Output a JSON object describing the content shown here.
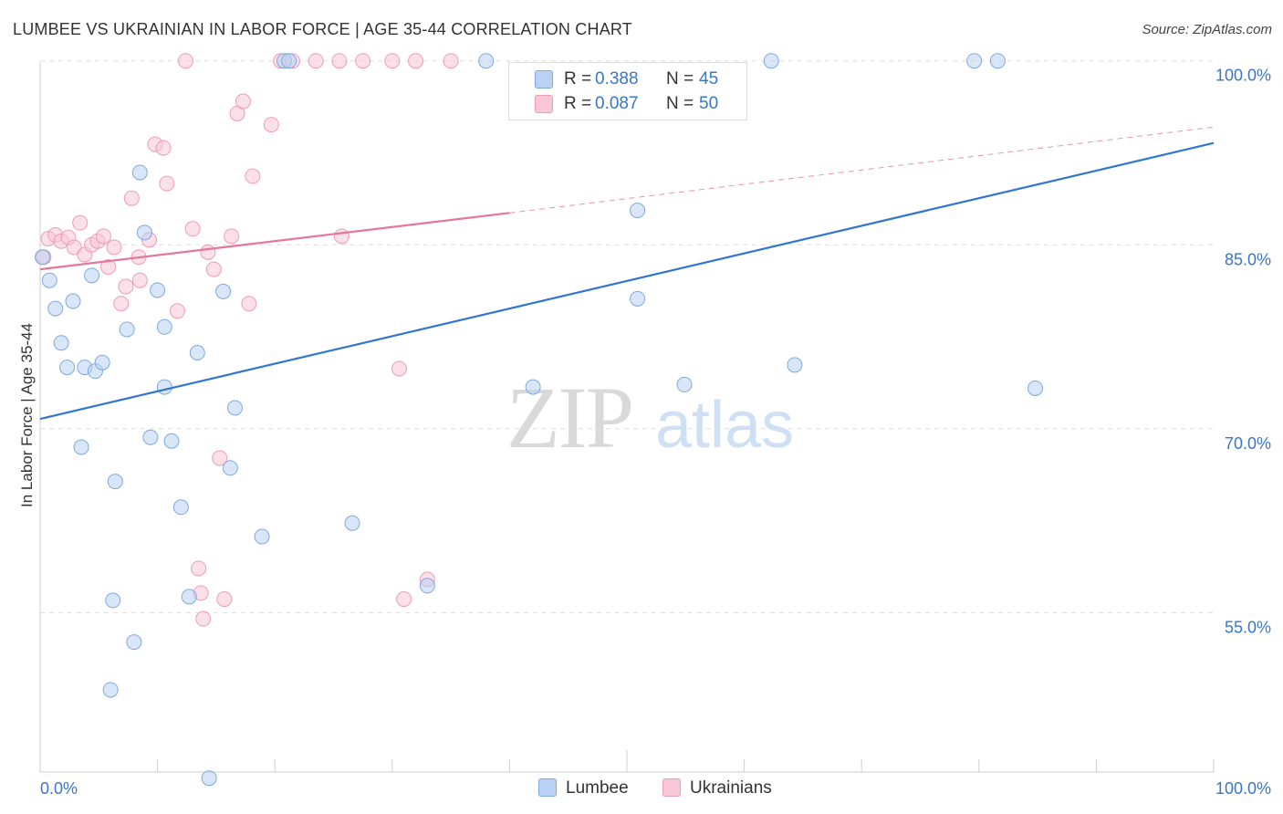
{
  "title": "LUMBEE VS UKRAINIAN IN LABOR FORCE | AGE 35-44 CORRELATION CHART",
  "source": "Source: ZipAtlas.com",
  "watermark": {
    "zip": "ZIP",
    "atlas": "atlas"
  },
  "colors": {
    "blue_fill": "#b9d1f2",
    "blue_stroke": "#7ea9e0",
    "blue_line": "#2f76d0",
    "pink_fill": "#f8c6d6",
    "pink_stroke": "#ee9cb7",
    "pink_line": "#e5779d",
    "axis_label": "#3a76c5",
    "grid": "#dddddd"
  },
  "legend_stats": [
    {
      "series": "Lumbee",
      "r_label": "R =",
      "r_value": "0.388",
      "n_label": "N =",
      "n_value": "45"
    },
    {
      "series": "Ukrainians",
      "r_label": "R =",
      "r_value": "0.087",
      "n_label": "N =",
      "n_value": "50"
    }
  ],
  "legend": [
    {
      "name": "Lumbee"
    },
    {
      "name": "Ukrainians"
    }
  ],
  "chart_data": {
    "type": "scatter",
    "title": "LUMBEE VS UKRAINIAN IN LABOR FORCE | AGE 35-44 CORRELATION CHART",
    "xlabel": "",
    "ylabel": "In Labor Force | Age 35-44",
    "xlim": [
      0,
      100
    ],
    "ylim": [
      42,
      100.5
    ],
    "x_tick_labels": [
      {
        "value": 0,
        "label": "0.0%"
      },
      {
        "value": 100,
        "label": "100.0%"
      }
    ],
    "y_tick_labels": [
      {
        "value": 55,
        "label": "55.0%"
      },
      {
        "value": 70,
        "label": "70.0%"
      },
      {
        "value": 85,
        "label": "85.0%"
      },
      {
        "value": 100,
        "label": "100.0%"
      }
    ],
    "y_gridlines": [
      55,
      70,
      85,
      100
    ],
    "series": [
      {
        "name": "Lumbee",
        "r": 0.388,
        "n": 45,
        "trend": {
          "x0": 0,
          "y0": 70.8,
          "x1": 100,
          "y1": 93.3
        },
        "points": [
          [
            0.2,
            84.0
          ],
          [
            0.8,
            82.1
          ],
          [
            1.3,
            79.8
          ],
          [
            1.8,
            77.0
          ],
          [
            2.3,
            75.0
          ],
          [
            2.8,
            80.4
          ],
          [
            3.5,
            68.5
          ],
          [
            3.8,
            75.0
          ],
          [
            4.4,
            82.5
          ],
          [
            4.7,
            74.7
          ],
          [
            5.3,
            75.4
          ],
          [
            6.4,
            65.7
          ],
          [
            6.2,
            56.0
          ],
          [
            6.0,
            48.7
          ],
          [
            7.4,
            78.1
          ],
          [
            8.0,
            52.6
          ],
          [
            8.5,
            90.9
          ],
          [
            8.9,
            86.0
          ],
          [
            9.4,
            69.3
          ],
          [
            10.0,
            81.3
          ],
          [
            10.6,
            78.3
          ],
          [
            10.6,
            73.4
          ],
          [
            11.2,
            69.0
          ],
          [
            12.0,
            63.6
          ],
          [
            12.7,
            56.3
          ],
          [
            13.4,
            76.2
          ],
          [
            14.4,
            41.5
          ],
          [
            15.6,
            81.2
          ],
          [
            16.2,
            66.8
          ],
          [
            16.6,
            71.7
          ],
          [
            18.9,
            61.2
          ],
          [
            20.8,
            100.0
          ],
          [
            21.2,
            100.0
          ],
          [
            26.6,
            62.3
          ],
          [
            33.0,
            57.2
          ],
          [
            38.0,
            100.0
          ],
          [
            42.0,
            73.4
          ],
          [
            50.9,
            87.8
          ],
          [
            50.9,
            80.6
          ],
          [
            54.9,
            73.6
          ],
          [
            62.3,
            100.0
          ],
          [
            64.3,
            75.2
          ],
          [
            79.6,
            100.0
          ],
          [
            81.6,
            100.0
          ],
          [
            84.8,
            73.3
          ]
        ]
      },
      {
        "name": "Ukrainians",
        "r": 0.087,
        "n": 50,
        "trend": {
          "x0": 0,
          "y0": 83.0,
          "x1": 40.0,
          "y1": 87.6
        },
        "trend_extension": {
          "x0": 40.0,
          "y0": 87.6,
          "x1": 100,
          "y1": 94.6
        },
        "points": [
          [
            0.3,
            84.0
          ],
          [
            0.7,
            85.5
          ],
          [
            1.3,
            85.8
          ],
          [
            1.8,
            85.3
          ],
          [
            2.4,
            85.6
          ],
          [
            2.9,
            84.8
          ],
          [
            3.4,
            86.8
          ],
          [
            3.8,
            84.2
          ],
          [
            4.4,
            85.0
          ],
          [
            4.9,
            85.3
          ],
          [
            5.4,
            85.7
          ],
          [
            5.8,
            83.2
          ],
          [
            6.3,
            84.8
          ],
          [
            6.9,
            80.2
          ],
          [
            7.3,
            81.6
          ],
          [
            7.8,
            88.8
          ],
          [
            8.4,
            84.0
          ],
          [
            8.5,
            82.1
          ],
          [
            9.3,
            85.4
          ],
          [
            9.8,
            93.2
          ],
          [
            10.5,
            92.9
          ],
          [
            10.8,
            90.0
          ],
          [
            11.7,
            79.6
          ],
          [
            12.4,
            100.0
          ],
          [
            13.0,
            86.3
          ],
          [
            13.5,
            58.6
          ],
          [
            13.7,
            56.6
          ],
          [
            13.9,
            54.5
          ],
          [
            14.3,
            84.4
          ],
          [
            14.8,
            83.0
          ],
          [
            15.3,
            67.6
          ],
          [
            15.7,
            56.1
          ],
          [
            16.3,
            85.7
          ],
          [
            16.8,
            95.7
          ],
          [
            17.3,
            96.7
          ],
          [
            17.8,
            80.2
          ],
          [
            18.1,
            90.6
          ],
          [
            19.7,
            94.8
          ],
          [
            20.5,
            100.0
          ],
          [
            21.5,
            100.0
          ],
          [
            23.5,
            100.0
          ],
          [
            25.5,
            100.0
          ],
          [
            25.7,
            85.7
          ],
          [
            27.5,
            100.0
          ],
          [
            30.0,
            100.0
          ],
          [
            30.6,
            74.9
          ],
          [
            31.0,
            56.1
          ],
          [
            32.0,
            100.0
          ],
          [
            33.0,
            57.7
          ],
          [
            35.0,
            100.0
          ]
        ]
      }
    ]
  }
}
